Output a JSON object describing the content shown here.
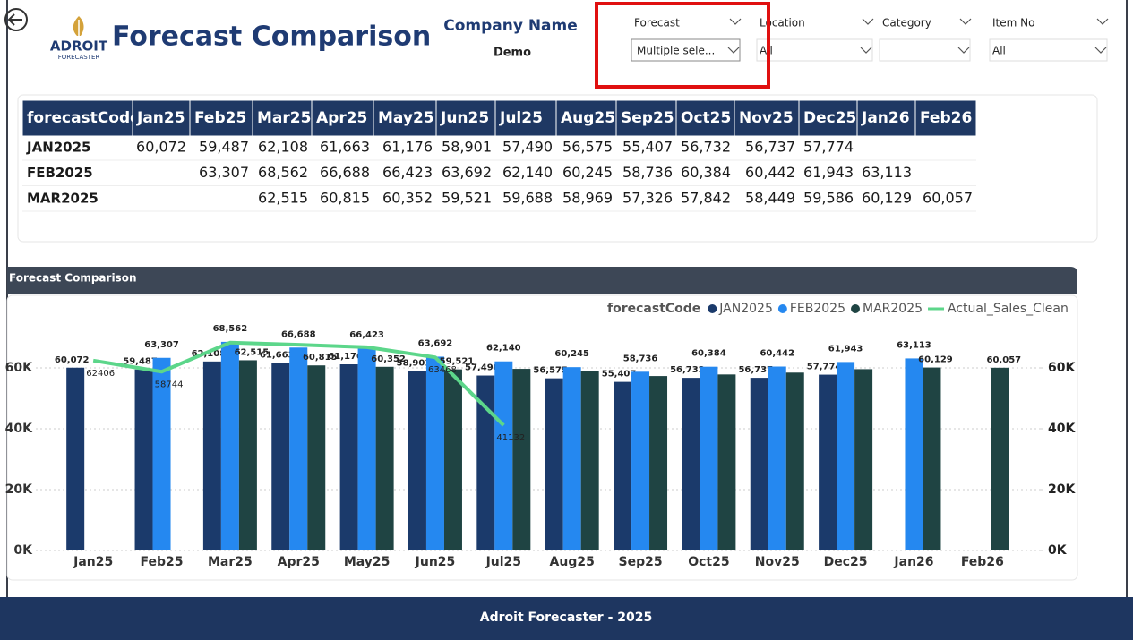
{
  "header": {
    "title": "Forecast Comparison",
    "logo_name": "ADROIT",
    "logo_sub": "FORECASTER",
    "company_label": "Company Name",
    "company_value": "Demo"
  },
  "filters": [
    {
      "label": "Forecast",
      "value": "Multiple sele..."
    },
    {
      "label": "Location",
      "value": "All"
    },
    {
      "label": "Category"
    },
    {
      "label": "Item No",
      "value": "All"
    }
  ],
  "table": {
    "columns": [
      "forecastCode",
      "Jan25",
      "Feb25",
      "Mar25",
      "Apr25",
      "May25",
      "Jun25",
      "Jul25",
      "Aug25",
      "Sep25",
      "Oct25",
      "Nov25",
      "Dec25",
      "Jan26",
      "Feb26"
    ],
    "rows": [
      [
        "JAN2025",
        "60,072",
        "59,487",
        "62,108",
        "61,663",
        "61,176",
        "58,901",
        "57,490",
        "56,575",
        "55,407",
        "56,732",
        "56,737",
        "57,774",
        null,
        null
      ],
      [
        "FEB2025",
        null,
        "63,307",
        "68,562",
        "66,688",
        "66,423",
        "63,692",
        "62,140",
        "60,245",
        "58,736",
        "60,384",
        "60,442",
        "61,943",
        "63,113",
        null
      ],
      [
        "MAR2025",
        null,
        null,
        "62,515",
        "60,815",
        "60,352",
        "59,521",
        "59,688",
        "58,969",
        "57,326",
        "57,842",
        "58,449",
        "59,586",
        "60,129",
        "60,057"
      ]
    ]
  },
  "chart_data": {
    "type": "bar",
    "title": "Forecast Comparison",
    "legend_title": "forecastCode",
    "categories": [
      "Jan25",
      "Feb25",
      "Mar25",
      "Apr25",
      "May25",
      "Jun25",
      "Jul25",
      "Aug25",
      "Sep25",
      "Oct25",
      "Nov25",
      "Dec25",
      "Jan26",
      "Feb26"
    ],
    "series": [
      {
        "name": "JAN2025",
        "color": "#1b3a6b",
        "values": [
          60072,
          59487,
          62108,
          61663,
          61176,
          58901,
          57490,
          56575,
          55407,
          56732,
          56737,
          57774,
          null,
          null
        ],
        "value_labels": [
          "60,072",
          "59,487",
          "62,108",
          "61,663",
          "61,176",
          "58,901",
          "57,490",
          "56,575",
          "55,407",
          "56,732",
          "56,737",
          "57,774",
          null,
          null
        ]
      },
      {
        "name": "FEB2025",
        "color": "#2588f0",
        "values": [
          null,
          63307,
          68562,
          66688,
          66423,
          63692,
          62140,
          60245,
          58736,
          60384,
          60442,
          61943,
          63113,
          null
        ],
        "value_labels": [
          null,
          "63,307",
          "68,562",
          "66,688",
          "66,423",
          "63,692",
          "62,140",
          "60,245",
          "58,736",
          "60,384",
          "60,442",
          "61,943",
          "63,113",
          null
        ]
      },
      {
        "name": "MAR2025",
        "color": "#1f4443",
        "values": [
          null,
          null,
          62515,
          60815,
          60352,
          59521,
          59688,
          58969,
          57326,
          57842,
          58449,
          59586,
          60129,
          60057
        ],
        "value_labels": [
          null,
          null,
          "62,515",
          "60,815",
          "60,352",
          "59,521",
          null,
          null,
          null,
          null,
          null,
          null,
          "60,129",
          "60,057"
        ]
      },
      {
        "name": "Actual_Sales_Clean",
        "type": "line",
        "axis": "y2",
        "color": "#5cd68a",
        "values": [
          62406,
          58744,
          68300,
          67600,
          66800,
          63468,
          41132,
          null,
          null,
          null,
          null,
          null,
          null,
          null
        ],
        "value_labels": [
          "62406",
          "58744",
          null,
          null,
          null,
          "63468",
          "41132",
          null,
          null,
          null,
          null,
          null,
          null,
          null
        ]
      }
    ],
    "ylim": [
      0,
      75000
    ],
    "yticks": [
      {
        "value": 0,
        "label": "0K"
      },
      {
        "value": 20000,
        "label": "20K"
      },
      {
        "value": 40000,
        "label": "40K"
      },
      {
        "value": 60000,
        "label": "60K"
      }
    ],
    "y2lim": [
      0,
      75000
    ],
    "y2ticks": [
      {
        "value": 0,
        "label": "0K"
      },
      {
        "value": 20000,
        "label": "20K"
      },
      {
        "value": 40000,
        "label": "40K"
      },
      {
        "value": 60000,
        "label": "60K"
      }
    ],
    "grid": true
  },
  "footer": {
    "text": "Adroit Forecaster - 2025"
  }
}
